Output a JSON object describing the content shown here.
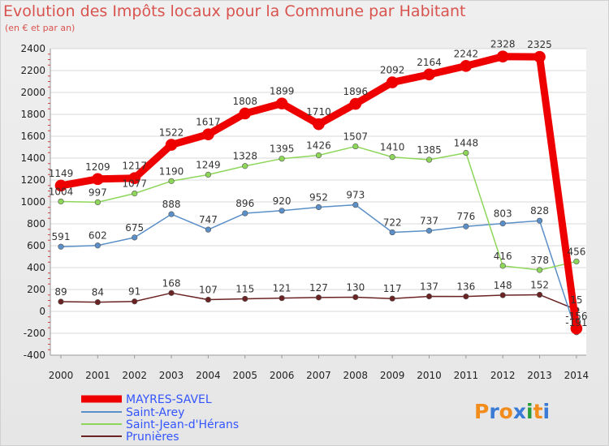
{
  "title": "Evolution des Impôts locaux pour la Commune par Habitant",
  "subtitle": "(en € et par an)",
  "logo_text": "Proxiti",
  "chart_data": {
    "type": "line",
    "title": "Evolution des Impôts locaux pour la Commune par Habitant",
    "subtitle": "(en € et par an)",
    "xlabel": "",
    "ylabel": "",
    "x": [
      "2000",
      "2001",
      "2002",
      "2003",
      "2004",
      "2005",
      "2006",
      "2007",
      "2008",
      "2009",
      "2010",
      "2011",
      "2012",
      "2013",
      "2014"
    ],
    "ylim": [
      -400,
      2400
    ],
    "yticks": [
      -400,
      -200,
      0,
      200,
      400,
      600,
      800,
      1000,
      1200,
      1400,
      1600,
      1800,
      2000,
      2200,
      2400
    ],
    "grid": true,
    "legend_position": "bottom-left",
    "series": [
      {
        "name": "MAYRES-SAVEL",
        "color": "#ee0000",
        "values": [
          1149,
          1209,
          1217,
          1522,
          1617,
          1808,
          1899,
          1710,
          1896,
          2092,
          2164,
          2242,
          2328,
          2325,
          -156
        ],
        "labels": [
          "1149",
          "1209",
          "1217",
          "1522",
          "1617",
          "1808",
          "1899",
          "1710",
          "1896",
          "2092",
          "2164",
          "2242",
          "2328",
          "2325",
          "-156"
        ]
      },
      {
        "name": "Saint-Arey",
        "color": "#5a8fc8",
        "values": [
          591,
          602,
          675,
          888,
          747,
          896,
          920,
          952,
          973,
          722,
          737,
          776,
          803,
          828,
          -191
        ],
        "labels": [
          "591",
          "602",
          "675",
          "888",
          "747",
          "896",
          "920",
          "952",
          "973",
          "722",
          "737",
          "776",
          "803",
          "828",
          "-191"
        ]
      },
      {
        "name": "Saint-Jean-d'Hérans",
        "color": "#8ed65a",
        "values": [
          1004,
          997,
          1077,
          1190,
          1249,
          1328,
          1395,
          1426,
          1507,
          1410,
          1385,
          1448,
          416,
          378,
          456
        ],
        "labels": [
          "1004",
          "997",
          "1077",
          "1190",
          "1249",
          "1328",
          "1395",
          "1426",
          "1507",
          "1410",
          "1385",
          "1448",
          "416",
          "378",
          "456"
        ]
      },
      {
        "name": "Prunières",
        "color": "#6b2222",
        "values": [
          89,
          84,
          91,
          168,
          107,
          115,
          121,
          127,
          130,
          117,
          137,
          136,
          148,
          152,
          15
        ],
        "labels": [
          "89",
          "84",
          "91",
          "168",
          "107",
          "115",
          "121",
          "127",
          "130",
          "117",
          "137",
          "136",
          "148",
          "152",
          "15"
        ]
      }
    ]
  }
}
